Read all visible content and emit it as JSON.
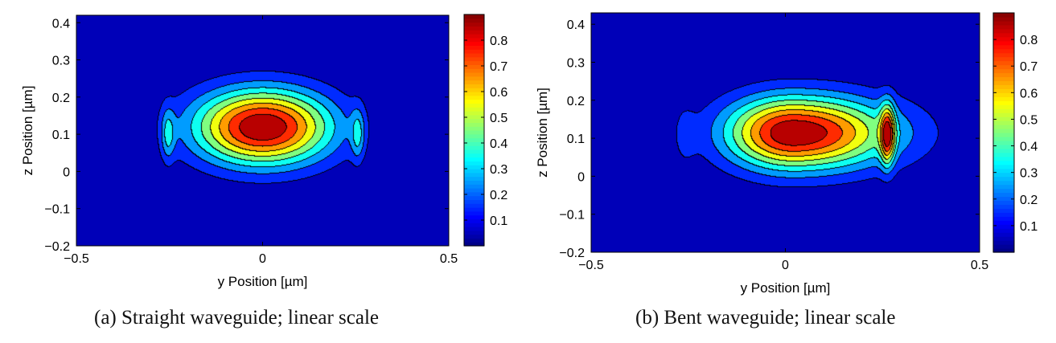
{
  "chart_data": [
    {
      "type": "heatmap",
      "subtype": "filled-contour",
      "caption": "(a) Straight waveguide; linear scale",
      "xlabel": "y Position [µm]",
      "ylabel": "z Position [µm]",
      "xlim": [
        -0.5,
        0.5
      ],
      "ylim": [
        -0.2,
        0.42
      ],
      "xticks": [
        -0.5,
        0,
        0.5
      ],
      "xtick_labels": [
        "−0.5",
        "0",
        "0.5"
      ],
      "yticks": [
        -0.2,
        -0.1,
        0,
        0.1,
        0.2,
        0.3,
        0.4
      ],
      "ytick_labels": [
        "−0.2",
        "−0.1",
        "0",
        "0.1",
        "0.2",
        "0.3",
        "0.4"
      ],
      "colormap": "jet",
      "contour_levels": [
        0.1,
        0.2,
        0.3,
        0.4,
        0.5,
        0.6,
        0.7,
        0.8
      ],
      "colorbar": {
        "range": [
          0,
          0.9
        ],
        "ticks": [
          0.1,
          0.2,
          0.3,
          0.4,
          0.5,
          0.6,
          0.7,
          0.8
        ],
        "tick_labels": [
          "0.1",
          "0.2",
          "0.3",
          "0.4",
          "0.5",
          "0.6",
          "0.7",
          "0.8"
        ]
      },
      "field": {
        "peak": 0.9,
        "core": {
          "y": 0.0,
          "z": 0.12,
          "amp": 0.9,
          "sy": 0.13,
          "sz": 0.072
        },
        "lobes": [
          {
            "y": -0.255,
            "z": 0.1,
            "amp": 0.24,
            "sy": 0.013,
            "sz": 0.05
          },
          {
            "y": 0.255,
            "z": 0.1,
            "amp": 0.24,
            "sy": 0.013,
            "sz": 0.05
          }
        ]
      }
    },
    {
      "type": "heatmap",
      "subtype": "filled-contour",
      "caption": "(b) Bent waveguide; linear scale",
      "xlabel": "y Position [µm]",
      "ylabel": "z Position [µm]",
      "xlim": [
        -0.5,
        0.5
      ],
      "ylim": [
        -0.2,
        0.43
      ],
      "xticks": [
        -0.5,
        0,
        0.5
      ],
      "xtick_labels": [
        "−0.5",
        "0",
        "0.5"
      ],
      "yticks": [
        -0.2,
        -0.1,
        0,
        0.1,
        0.2,
        0.3,
        0.4
      ],
      "ytick_labels": [
        "−0.2",
        "−0.1",
        "0",
        "0.1",
        "0.2",
        "0.3",
        "0.4"
      ],
      "colormap": "jet",
      "contour_levels": [
        0.1,
        0.2,
        0.3,
        0.4,
        0.5,
        0.6,
        0.7,
        0.8
      ],
      "colorbar": {
        "range": [
          0,
          0.9
        ],
        "ticks": [
          0.1,
          0.2,
          0.3,
          0.4,
          0.5,
          0.6,
          0.7,
          0.8
        ],
        "tick_labels": [
          "0.1",
          "0.2",
          "0.3",
          "0.4",
          "0.5",
          "0.6",
          "0.7",
          "0.8"
        ]
      },
      "field": {
        "peak": 0.9,
        "core": {
          "y": 0.02,
          "z": 0.115,
          "amp": 0.9,
          "sy": 0.145,
          "sz": 0.068,
          "skew": 0.45
        },
        "lobes": [
          {
            "y": -0.26,
            "z": 0.11,
            "amp": 0.1,
            "sy": 0.02,
            "sz": 0.055
          },
          {
            "y": 0.262,
            "z": 0.11,
            "amp": 0.58,
            "sy": 0.013,
            "sz": 0.055
          }
        ]
      }
    }
  ]
}
